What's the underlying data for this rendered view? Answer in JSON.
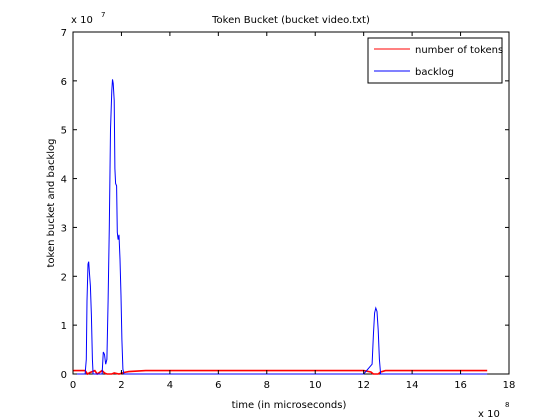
{
  "chart_data": {
    "type": "line",
    "title": "Token Bucket (bucket video.txt)",
    "xlabel": "time (in microseconds)",
    "ylabel": "token bucket and backlog",
    "x_multiplier": "x 10",
    "x_exponent": "8",
    "y_multiplier": "x 10",
    "y_exponent": "7",
    "xlim": [
      0,
      18
    ],
    "ylim": [
      0,
      7
    ],
    "xticks": [
      0,
      2,
      4,
      6,
      8,
      10,
      12,
      14,
      16,
      18
    ],
    "yticks": [
      0,
      1,
      2,
      3,
      4,
      5,
      6,
      7
    ],
    "grid": false,
    "legend_position": "top-right",
    "series": [
      {
        "name": "number of tokens",
        "color": "#ff0000",
        "x": [
          0,
          0.5,
          0.6,
          0.7,
          0.9,
          1.0,
          1.2,
          1.3,
          1.4,
          1.6,
          1.7,
          1.9,
          2.1,
          2.3,
          3,
          4,
          5,
          6,
          7,
          8,
          9,
          10,
          11,
          12,
          12.3,
          12.4,
          12.5,
          12.6,
          12.7,
          12.9,
          13.5,
          14,
          15,
          16,
          17.1
        ],
        "y": [
          0.07,
          0.07,
          0.0,
          0.03,
          0.07,
          0.0,
          0.07,
          0.02,
          0.0,
          0.0,
          0.02,
          0.0,
          0.03,
          0.05,
          0.07,
          0.07,
          0.07,
          0.07,
          0.07,
          0.07,
          0.07,
          0.07,
          0.07,
          0.07,
          0.04,
          0.0,
          0.0,
          0.0,
          0.04,
          0.07,
          0.07,
          0.07,
          0.07,
          0.07,
          0.07
        ]
      },
      {
        "name": "backlog",
        "color": "#0000ff",
        "x": [
          0,
          0.5,
          0.55,
          0.58,
          0.62,
          0.65,
          0.68,
          0.72,
          0.76,
          0.8,
          0.83,
          0.86,
          0.9,
          1.0,
          1.1,
          1.2,
          1.25,
          1.3,
          1.35,
          1.4,
          1.45,
          1.5,
          1.55,
          1.6,
          1.63,
          1.66,
          1.7,
          1.73,
          1.76,
          1.8,
          1.83,
          1.86,
          1.9,
          1.94,
          1.98,
          2.02,
          2.06,
          2.1,
          2.3,
          4,
          8,
          12,
          12.35,
          12.4,
          12.45,
          12.5,
          12.55,
          12.6,
          12.65,
          12.7,
          12.8,
          14,
          17.1
        ],
        "y": [
          0,
          0,
          0.3,
          1.5,
          2.25,
          2.3,
          2.05,
          1.8,
          1.2,
          0.3,
          0,
          0,
          0,
          0,
          0,
          0,
          0.45,
          0.4,
          0.2,
          0.3,
          1.5,
          3.0,
          5.0,
          5.8,
          6.03,
          5.95,
          5.6,
          4.2,
          3.9,
          3.85,
          2.9,
          2.75,
          2.85,
          2.35,
          1.6,
          0.7,
          0.1,
          0,
          0,
          0,
          0,
          0,
          0.2,
          0.8,
          1.25,
          1.35,
          1.28,
          0.9,
          0.3,
          0,
          0,
          0,
          0
        ]
      }
    ]
  }
}
